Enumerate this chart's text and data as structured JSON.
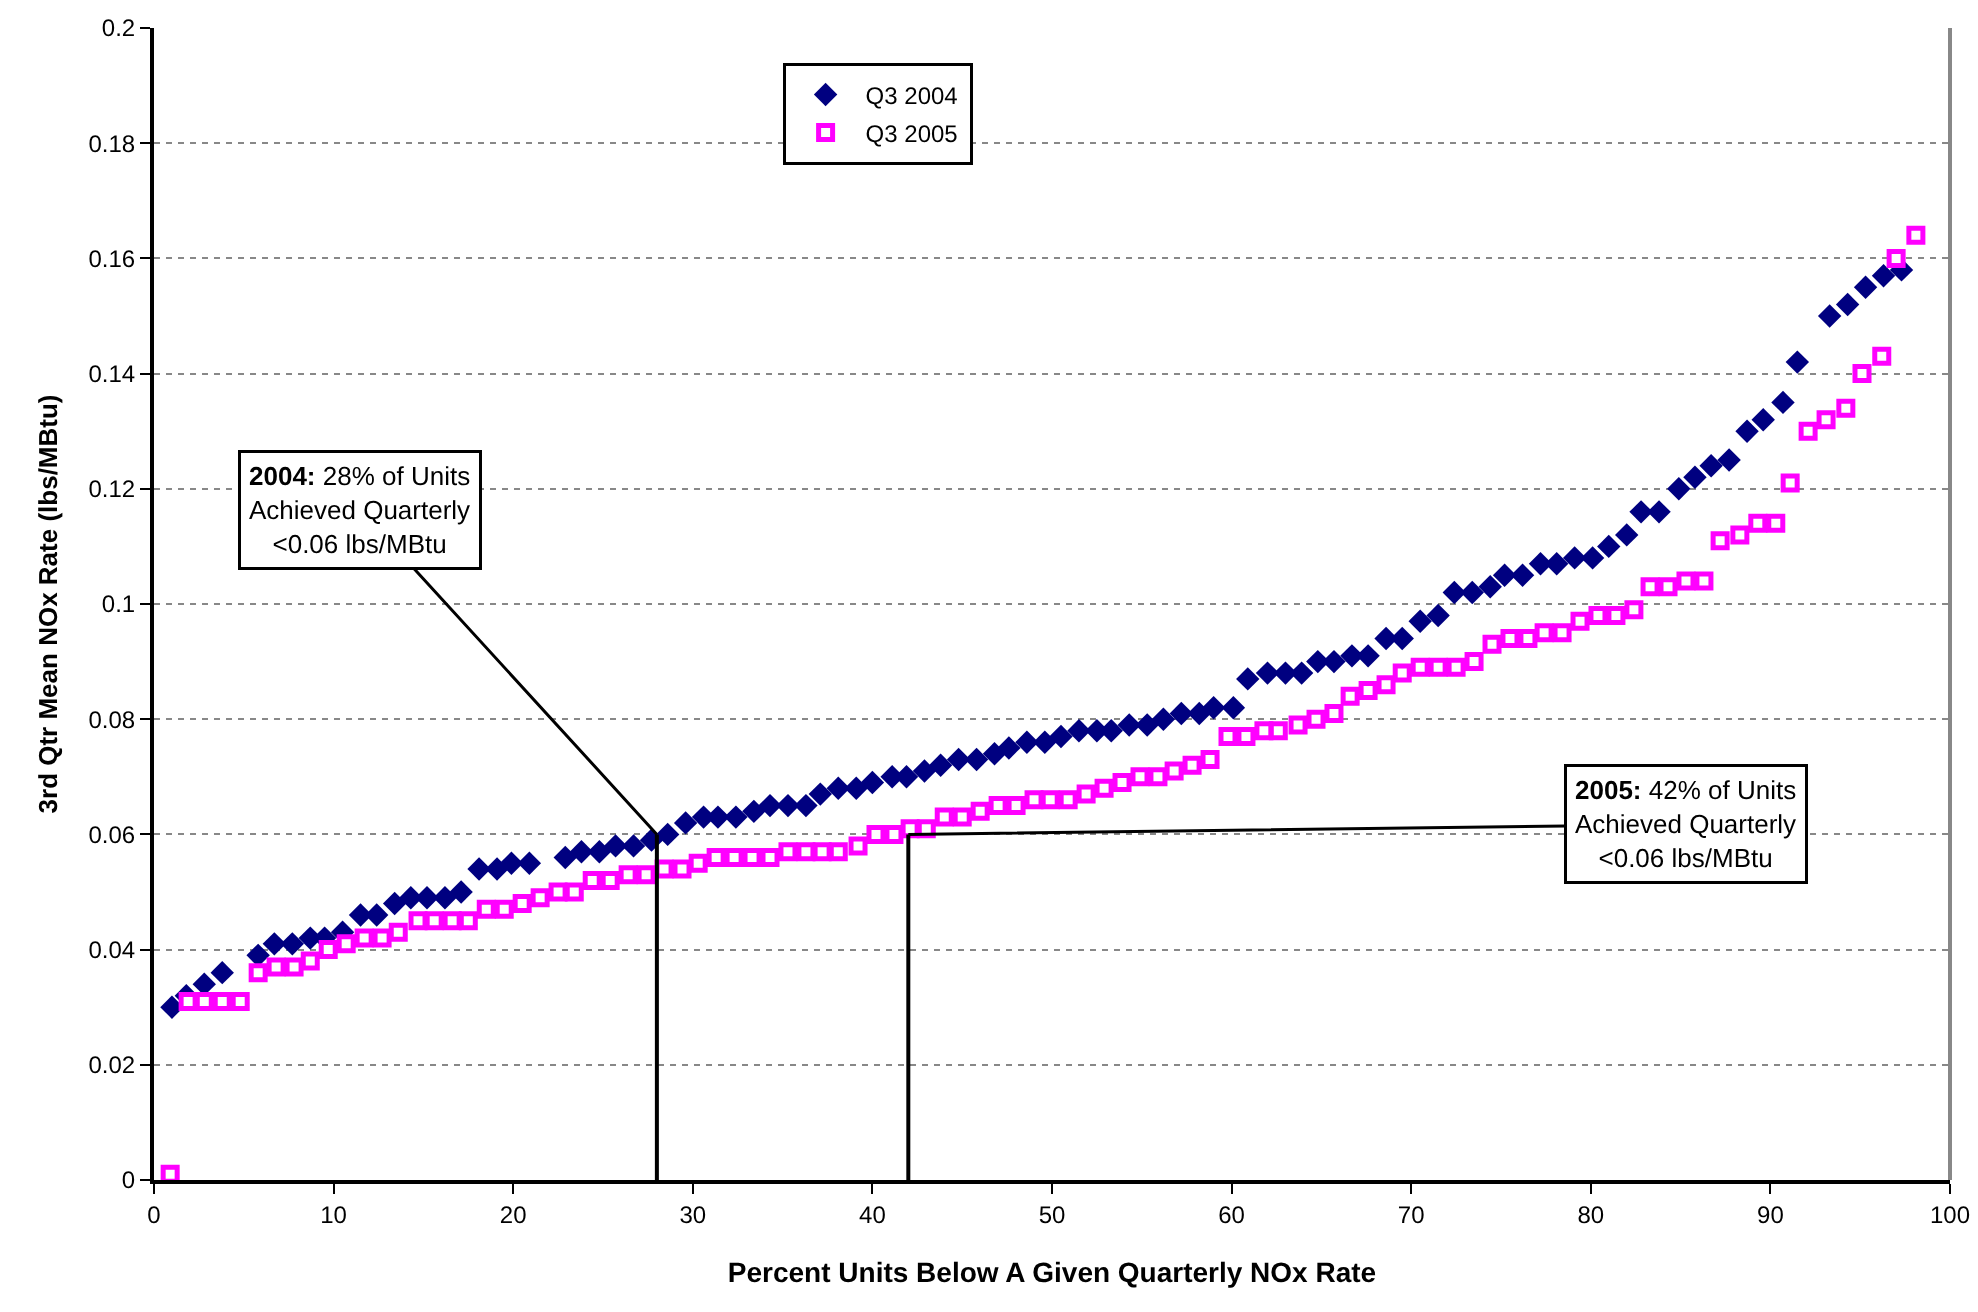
{
  "chart_data": {
    "type": "scatter",
    "xlabel": "Percent Units Below A Given Quarterly NOx Rate",
    "ylabel": "3rd Qtr Mean NOx Rate (lbs/MBtu)",
    "xlim": [
      0,
      100
    ],
    "xticks": [
      0,
      10,
      20,
      30,
      40,
      50,
      60,
      70,
      80,
      90,
      100
    ],
    "ylim": [
      0,
      0.2
    ],
    "yticks": [
      0,
      0.02,
      0.04,
      0.06,
      0.08,
      0.1,
      0.12,
      0.14,
      0.16,
      0.18,
      0.2
    ],
    "grid": "y",
    "legend": "top",
    "series": [
      {
        "name": "Q3 2004",
        "color": "#000080",
        "marker": "diamond",
        "x": [
          1.0,
          1.8,
          2.8,
          3.8,
          5.8,
          6.7,
          7.7,
          8.7,
          9.5,
          10.5,
          11.5,
          12.4,
          13.4,
          14.3,
          15.2,
          16.2,
          17.1,
          18.1,
          19.1,
          19.9,
          20.9,
          22.9,
          23.8,
          24.8,
          25.7,
          26.7,
          27.7,
          28.6,
          29.6,
          30.6,
          31.4,
          32.4,
          33.4,
          34.3,
          35.3,
          36.3,
          37.1,
          38.1,
          39.1,
          40.0,
          41.1,
          41.9,
          42.9,
          43.8,
          44.8,
          45.8,
          46.8,
          47.6,
          48.6,
          49.6,
          50.5,
          51.5,
          52.5,
          53.3,
          54.3,
          55.3,
          56.2,
          57.2,
          58.2,
          59.0,
          60.1,
          60.9,
          62.0,
          63.0,
          63.9,
          64.8,
          65.7,
          66.7,
          67.6,
          68.6,
          69.5,
          70.5,
          71.5,
          72.4,
          73.4,
          74.4,
          75.2,
          76.2,
          77.2,
          78.1,
          79.1,
          80.1,
          81.0,
          82.0,
          82.8,
          83.8,
          84.9,
          85.8,
          86.7,
          87.7,
          88.7,
          89.6,
          90.7,
          91.5,
          93.3,
          94.3,
          95.3,
          96.3,
          97.3
        ],
        "values": [
          0.03,
          0.032,
          0.034,
          0.036,
          0.039,
          0.041,
          0.041,
          0.042,
          0.042,
          0.043,
          0.046,
          0.046,
          0.048,
          0.049,
          0.049,
          0.049,
          0.05,
          0.054,
          0.054,
          0.055,
          0.055,
          0.056,
          0.057,
          0.057,
          0.058,
          0.058,
          0.059,
          0.06,
          0.062,
          0.063,
          0.063,
          0.063,
          0.064,
          0.065,
          0.065,
          0.065,
          0.067,
          0.068,
          0.068,
          0.069,
          0.07,
          0.07,
          0.071,
          0.072,
          0.073,
          0.073,
          0.074,
          0.075,
          0.076,
          0.076,
          0.077,
          0.078,
          0.078,
          0.078,
          0.079,
          0.079,
          0.08,
          0.081,
          0.081,
          0.082,
          0.082,
          0.087,
          0.088,
          0.088,
          0.088,
          0.09,
          0.09,
          0.091,
          0.091,
          0.094,
          0.094,
          0.097,
          0.098,
          0.102,
          0.102,
          0.103,
          0.105,
          0.105,
          0.107,
          0.107,
          0.108,
          0.108,
          0.11,
          0.112,
          0.116,
          0.116,
          0.12,
          0.122,
          0.124,
          0.125,
          0.13,
          0.132,
          0.135,
          0.142,
          0.15,
          0.152,
          0.155,
          0.157,
          0.158
        ]
      },
      {
        "name": "Q3 2005",
        "color": "#ff00ff",
        "marker": "square",
        "x": [
          0.9,
          1.9,
          2.8,
          3.8,
          4.8,
          5.8,
          6.8,
          7.8,
          8.7,
          9.7,
          10.7,
          11.7,
          12.7,
          13.6,
          14.7,
          15.6,
          16.6,
          17.5,
          18.5,
          19.5,
          20.5,
          21.5,
          22.5,
          23.4,
          24.4,
          25.4,
          26.4,
          27.4,
          28.4,
          29.4,
          30.3,
          31.3,
          32.3,
          33.3,
          34.3,
          35.3,
          36.3,
          37.2,
          38.1,
          39.2,
          40.2,
          41.2,
          42.1,
          43.0,
          44.0,
          45.0,
          46.0,
          47.0,
          48.0,
          49.0,
          49.9,
          50.9,
          51.9,
          52.9,
          53.9,
          54.9,
          55.9,
          56.8,
          57.8,
          58.8,
          59.8,
          60.8,
          61.8,
          62.6,
          63.7,
          64.7,
          65.7,
          66.6,
          67.6,
          68.6,
          69.5,
          70.5,
          71.5,
          72.5,
          73.5,
          74.5,
          75.5,
          76.5,
          77.4,
          78.4,
          79.4,
          80.4,
          81.4,
          82.4,
          83.3,
          84.3,
          85.3,
          86.3,
          87.2,
          88.3,
          89.3,
          90.3,
          91.1,
          92.1,
          93.1,
          94.2,
          95.1,
          96.2,
          97.0,
          98.1
        ],
        "values": [
          0.001,
          0.031,
          0.031,
          0.031,
          0.031,
          0.036,
          0.037,
          0.037,
          0.038,
          0.04,
          0.041,
          0.042,
          0.042,
          0.043,
          0.045,
          0.045,
          0.045,
          0.045,
          0.047,
          0.047,
          0.048,
          0.049,
          0.05,
          0.05,
          0.052,
          0.052,
          0.053,
          0.053,
          0.054,
          0.054,
          0.055,
          0.056,
          0.056,
          0.056,
          0.056,
          0.057,
          0.057,
          0.057,
          0.057,
          0.058,
          0.06,
          0.06,
          0.061,
          0.061,
          0.063,
          0.063,
          0.064,
          0.065,
          0.065,
          0.066,
          0.066,
          0.066,
          0.067,
          0.068,
          0.069,
          0.07,
          0.07,
          0.071,
          0.072,
          0.073,
          0.077,
          0.077,
          0.078,
          0.078,
          0.079,
          0.08,
          0.081,
          0.084,
          0.085,
          0.086,
          0.088,
          0.089,
          0.089,
          0.089,
          0.09,
          0.093,
          0.094,
          0.094,
          0.095,
          0.095,
          0.097,
          0.098,
          0.098,
          0.099,
          0.103,
          0.103,
          0.104,
          0.104,
          0.111,
          0.112,
          0.114,
          0.114,
          0.121,
          0.13,
          0.132,
          0.134,
          0.14,
          0.143,
          0.16,
          0.164
        ]
      },
      {
        "type": "line",
        "color": "#000000",
        "marker": "none",
        "x": [
          28,
          28
        ],
        "values": [
          0,
          0.06
        ]
      },
      {
        "type": "line",
        "color": "#000000",
        "marker": "none",
        "x": [
          42,
          42
        ],
        "values": [
          0,
          0.06
        ]
      }
    ],
    "annotations": [
      {
        "text": "2004: 28% of Units\nAchieved Quarterly\n<0.06 lbs/MBtu",
        "x": 28,
        "y": 0.06
      },
      {
        "text": "2005: 42% of Units\nAchieved Quarterly\n<0.06 lbs/MBtu",
        "x": 42,
        "y": 0.06
      }
    ]
  }
}
